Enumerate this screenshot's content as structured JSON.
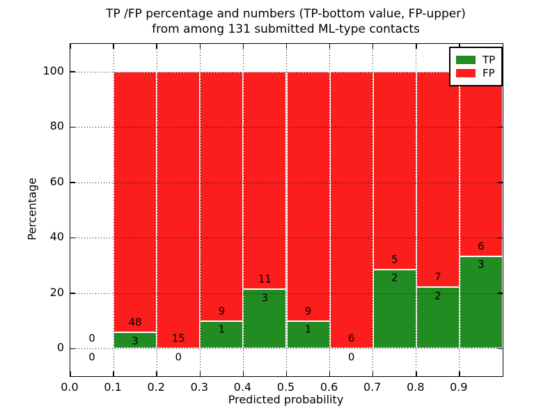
{
  "chart_data": {
    "type": "bar",
    "stacked": true,
    "normalized_to_percent": true,
    "title_lines": [
      "TP /FP percentage and numbers (TP-bottom value, FP-upper)",
      "from among 131 submitted ML-type contacts"
    ],
    "xlabel": "Predicted probability",
    "ylabel": "Percentage",
    "xlim": [
      0.0,
      1.0
    ],
    "ylim": [
      -10,
      110
    ],
    "xtick_values": [
      0.0,
      0.1,
      0.2,
      0.3,
      0.4,
      0.5,
      0.6,
      0.7,
      0.8,
      0.9
    ],
    "xtick_labels": [
      "0.0",
      "0.1",
      "0.2",
      "0.3",
      "0.4",
      "0.5",
      "0.6",
      "0.7",
      "0.8",
      "0.9"
    ],
    "ytick_values": [
      0,
      20,
      40,
      60,
      80,
      100
    ],
    "ytick_labels": [
      "0",
      "20",
      "40",
      "60",
      "80",
      "100"
    ],
    "bin_width": 0.1,
    "bin_starts": [
      0.0,
      0.1,
      0.2,
      0.3,
      0.4,
      0.5,
      0.6,
      0.7,
      0.8,
      0.9
    ],
    "series": [
      {
        "name": "TP",
        "color": "#228b22",
        "values": [
          0,
          3,
          0,
          1,
          3,
          1,
          0,
          2,
          2,
          3
        ]
      },
      {
        "name": "FP",
        "color": "#fc1d1d",
        "values": [
          0,
          48,
          15,
          9,
          11,
          9,
          6,
          5,
          7,
          6
        ]
      }
    ],
    "legend": {
      "position": "upper-right",
      "entries": [
        {
          "label": "TP",
          "color": "#228b22"
        },
        {
          "label": "FP",
          "color": "#fc1d1d"
        }
      ]
    },
    "grid": {
      "visible": true,
      "style": "dotted",
      "color": "#000000"
    },
    "bar_edge_color": "#ffffff",
    "text_color": "#000000"
  }
}
